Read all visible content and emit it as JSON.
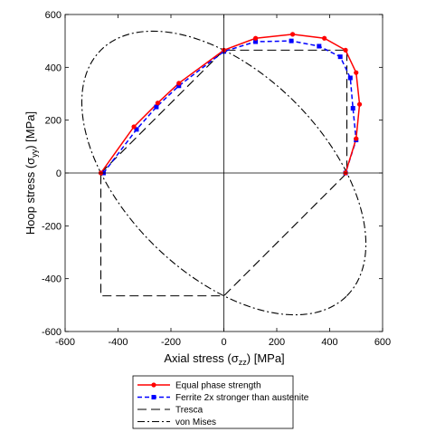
{
  "chart_data": {
    "type": "line",
    "xlabel_main": "Axial stress (",
    "xlabel_sym": "σ",
    "xlabel_sub": "zz",
    "xlabel_end": ") [MPa]",
    "ylabel_main": "Hoop stress (",
    "ylabel_sym": "σ",
    "ylabel_sub": "yy",
    "ylabel_end": ") [MPa]",
    "xlim": [
      -600,
      600
    ],
    "ylim": [
      -600,
      600
    ],
    "xticks": [
      -600,
      -400,
      -200,
      0,
      200,
      400,
      600
    ],
    "yticks": [
      -600,
      -400,
      -200,
      0,
      200,
      400,
      600
    ],
    "grid": false,
    "legend_position": "below",
    "series": [
      {
        "name": "Equal phase strength",
        "color": "#ff0000",
        "style": "solid",
        "marker": "circle",
        "x": [
          -465,
          -340,
          -250,
          -170,
          0,
          120,
          260,
          380,
          460,
          500,
          513,
          500,
          460
        ],
        "y": [
          0,
          175,
          265,
          340,
          465,
          510,
          525,
          510,
          465,
          380,
          260,
          130,
          0
        ]
      },
      {
        "name": "Ferrite 2x stronger than austenite",
        "color": "#0000ff",
        "style": "dashed",
        "marker": "square",
        "x": [
          -455,
          -330,
          -255,
          -170,
          0,
          120,
          255,
          360,
          440,
          478,
          488,
          500,
          460
        ],
        "y": [
          0,
          165,
          250,
          330,
          460,
          497,
          500,
          480,
          440,
          360,
          245,
          125,
          0
        ]
      },
      {
        "name": "Tresca",
        "color": "#000000",
        "style": "long-dash",
        "marker": "none",
        "x": [
          -465,
          0,
          465,
          465,
          0,
          -465,
          -465
        ],
        "y": [
          0,
          465,
          465,
          0,
          -465,
          -465,
          0
        ]
      },
      {
        "name": "von Mises",
        "color": "#000000",
        "style": "dash-dot",
        "marker": "none",
        "x": [],
        "y": []
      }
    ],
    "von_mises_yield": 465
  }
}
